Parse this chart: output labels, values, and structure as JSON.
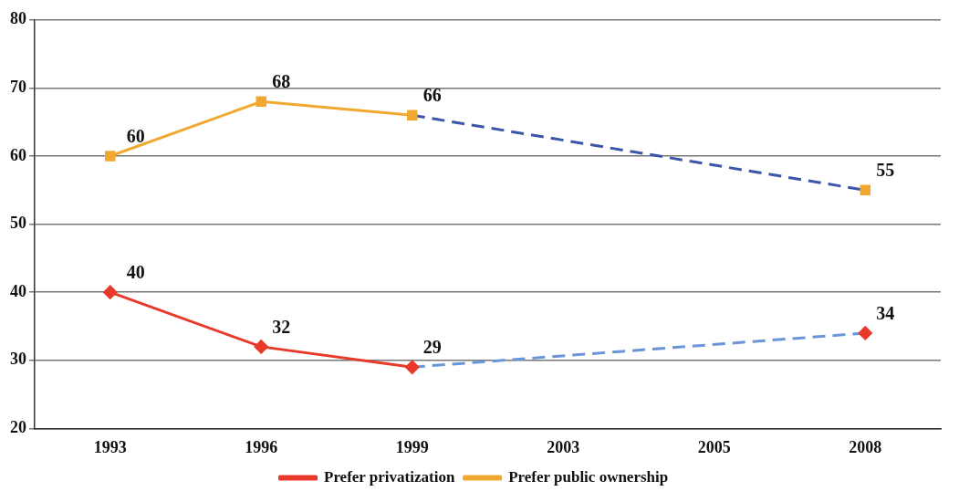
{
  "chart_data": {
    "type": "line",
    "categories": [
      "1993",
      "1996",
      "1999",
      "2003",
      "2005",
      "2008"
    ],
    "series": [
      {
        "name": "Prefer privatization",
        "color": "#e8392a",
        "values": [
          40,
          32,
          29,
          null,
          null,
          34
        ],
        "marker": "diamond",
        "line_style": "solid",
        "value_labels": [
          "40",
          "32",
          "29",
          null,
          null,
          "34"
        ]
      },
      {
        "name": "Prefer public ownership",
        "color": "#f0a830",
        "values": [
          60,
          68,
          66,
          null,
          null,
          55
        ],
        "marker": "square",
        "line_style": "solid",
        "value_labels": [
          "60",
          "68",
          "66",
          null,
          null,
          "55"
        ]
      },
      {
        "color": "#6a95d8",
        "values": [
          null,
          null,
          29,
          null,
          null,
          34
        ],
        "marker": "none",
        "line_style": "dashed"
      },
      {
        "color": "#3b55a8",
        "values": [
          null,
          null,
          66,
          null,
          null,
          55
        ],
        "marker": "none",
        "line_style": "dashed"
      }
    ],
    "ylim": [
      20,
      80
    ],
    "yticks": [
      20,
      30,
      40,
      50,
      60,
      70,
      80
    ],
    "grid": "y",
    "legend": "bottom"
  }
}
